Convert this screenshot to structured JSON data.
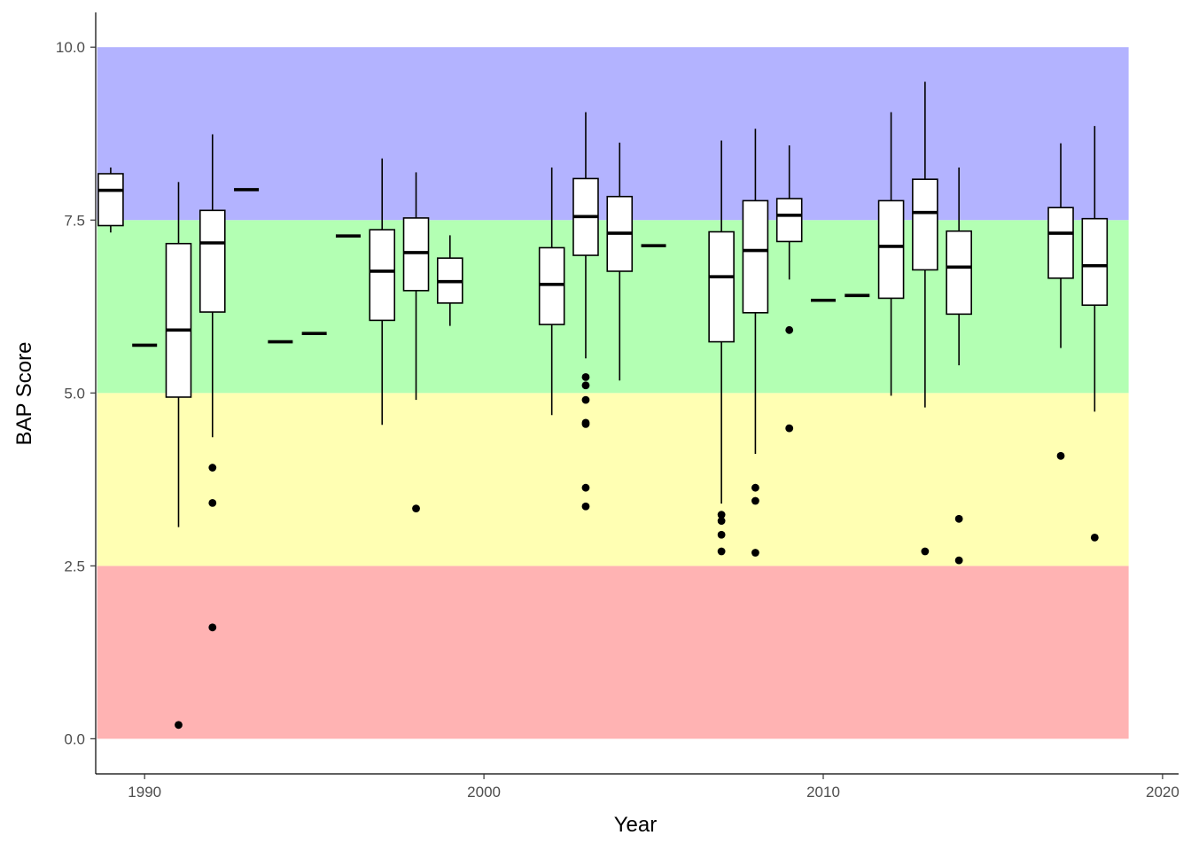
{
  "chart_data": {
    "type": "boxplot",
    "title": "",
    "xlabel": "Year",
    "ylabel": "BAP Score",
    "xlim": [
      1988.6,
      2020.6
    ],
    "ylim": [
      -0.5,
      10.5
    ],
    "x_ticks": [
      1990,
      2000,
      2010,
      2020
    ],
    "y_ticks": [
      0.0,
      2.5,
      5.0,
      7.5,
      10.0
    ],
    "x_tick_labels": [
      "1990",
      "2000",
      "2010",
      "2020"
    ],
    "y_tick_labels": [
      "0.0",
      "2.5",
      "5.0",
      "7.5",
      "10.0"
    ],
    "grid": false,
    "legend": "none",
    "bands": [
      {
        "ymin": 0.0,
        "ymax": 2.5,
        "color": "#ffb3b3"
      },
      {
        "ymin": 2.5,
        "ymax": 5.0,
        "color": "#ffffb3"
      },
      {
        "ymin": 5.0,
        "ymax": 7.5,
        "color": "#b3ffb3"
      },
      {
        "ymin": 7.5,
        "ymax": 10.0,
        "color": "#b3b3ff"
      }
    ],
    "bands_xrange": [
      1988.6,
      2019.0
    ],
    "box_color": "#ffffff",
    "line_color": "#000000",
    "boxes": [
      {
        "year": 1989,
        "whisker_low": 7.32,
        "q1": 7.42,
        "median": 7.93,
        "q3": 8.17,
        "whisker_high": 8.26,
        "outliers": []
      },
      {
        "year": 1990,
        "whisker_low": 5.69,
        "q1": 5.69,
        "median": 5.69,
        "q3": 5.69,
        "whisker_high": 5.69,
        "outliers": []
      },
      {
        "year": 1991,
        "whisker_low": 3.06,
        "q1": 4.94,
        "median": 5.91,
        "q3": 7.16,
        "whisker_high": 8.05,
        "outliers": [
          0.2
        ]
      },
      {
        "year": 1992,
        "whisker_low": 4.36,
        "q1": 6.17,
        "median": 7.17,
        "q3": 7.64,
        "whisker_high": 8.74,
        "outliers": [
          3.92,
          3.41,
          1.61
        ]
      },
      {
        "year": 1993,
        "whisker_low": 7.94,
        "q1": 7.94,
        "median": 7.94,
        "q3": 7.94,
        "whisker_high": 7.94,
        "outliers": []
      },
      {
        "year": 1994,
        "whisker_low": 5.74,
        "q1": 5.74,
        "median": 5.74,
        "q3": 5.74,
        "whisker_high": 5.74,
        "outliers": []
      },
      {
        "year": 1995,
        "whisker_low": 5.86,
        "q1": 5.86,
        "median": 5.86,
        "q3": 5.86,
        "whisker_high": 5.86,
        "outliers": []
      },
      {
        "year": 1996,
        "whisker_low": 7.27,
        "q1": 7.27,
        "median": 7.27,
        "q3": 7.27,
        "whisker_high": 7.27,
        "outliers": []
      },
      {
        "year": 1997,
        "whisker_low": 4.54,
        "q1": 6.05,
        "median": 6.76,
        "q3": 7.36,
        "whisker_high": 8.39,
        "outliers": []
      },
      {
        "year": 1998,
        "whisker_low": 4.9,
        "q1": 6.48,
        "median": 7.03,
        "q3": 7.53,
        "whisker_high": 8.19,
        "outliers": [
          3.33
        ]
      },
      {
        "year": 1999,
        "whisker_low": 5.97,
        "q1": 6.3,
        "median": 6.61,
        "q3": 6.95,
        "whisker_high": 7.28,
        "outliers": []
      },
      {
        "year": 2002,
        "whisker_low": 4.68,
        "q1": 5.99,
        "median": 6.57,
        "q3": 7.1,
        "whisker_high": 8.26,
        "outliers": []
      },
      {
        "year": 2003,
        "whisker_low": 5.5,
        "q1": 6.99,
        "median": 7.55,
        "q3": 8.1,
        "whisker_high": 9.06,
        "outliers": [
          5.23,
          5.11,
          4.9,
          4.57,
          4.55,
          3.63,
          3.36
        ]
      },
      {
        "year": 2004,
        "whisker_low": 5.18,
        "q1": 6.76,
        "median": 7.31,
        "q3": 7.84,
        "whisker_high": 8.62,
        "outliers": []
      },
      {
        "year": 2005,
        "whisker_low": 7.13,
        "q1": 7.13,
        "median": 7.13,
        "q3": 7.13,
        "whisker_high": 7.13,
        "outliers": []
      },
      {
        "year": 2007,
        "whisker_low": 3.4,
        "q1": 5.74,
        "median": 6.68,
        "q3": 7.33,
        "whisker_high": 8.65,
        "outliers": [
          3.24,
          3.15,
          2.95,
          2.71
        ]
      },
      {
        "year": 2008,
        "whisker_low": 4.12,
        "q1": 6.16,
        "median": 7.06,
        "q3": 7.78,
        "whisker_high": 8.82,
        "outliers": [
          3.63,
          3.44,
          2.69
        ]
      },
      {
        "year": 2009,
        "whisker_low": 6.64,
        "q1": 7.19,
        "median": 7.57,
        "q3": 7.81,
        "whisker_high": 8.58,
        "outliers": [
          5.91,
          4.49
        ]
      },
      {
        "year": 2010,
        "whisker_low": 6.34,
        "q1": 6.34,
        "median": 6.34,
        "q3": 6.34,
        "whisker_high": 6.34,
        "outliers": []
      },
      {
        "year": 2011,
        "whisker_low": 6.41,
        "q1": 6.41,
        "median": 6.41,
        "q3": 6.41,
        "whisker_high": 6.41,
        "outliers": []
      },
      {
        "year": 2012,
        "whisker_low": 4.96,
        "q1": 6.37,
        "median": 7.12,
        "q3": 7.78,
        "whisker_high": 9.06,
        "outliers": []
      },
      {
        "year": 2013,
        "whisker_low": 4.79,
        "q1": 6.78,
        "median": 7.61,
        "q3": 8.09,
        "whisker_high": 9.5,
        "outliers": [
          2.71
        ]
      },
      {
        "year": 2014,
        "whisker_low": 5.4,
        "q1": 6.14,
        "median": 6.82,
        "q3": 7.34,
        "whisker_high": 8.26,
        "outliers": [
          3.18,
          2.58
        ]
      },
      {
        "year": 2017,
        "whisker_low": 5.65,
        "q1": 6.66,
        "median": 7.31,
        "q3": 7.68,
        "whisker_high": 8.61,
        "outliers": [
          4.09
        ]
      },
      {
        "year": 2018,
        "whisker_low": 4.73,
        "q1": 6.27,
        "median": 6.84,
        "q3": 7.52,
        "whisker_high": 8.86,
        "outliers": [
          2.91
        ]
      }
    ]
  }
}
